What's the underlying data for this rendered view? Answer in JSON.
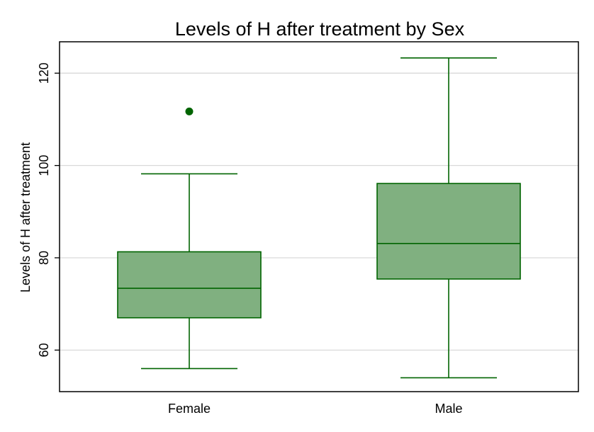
{
  "chart_data": {
    "type": "box",
    "title": "Levels of H after treatment by Sex",
    "xlabel": "",
    "ylabel": "Levels of H after treatment",
    "ylim": [
      51,
      126.8
    ],
    "yticks": [
      60,
      80,
      100,
      120
    ],
    "grid": "horizontal",
    "categories": [
      "Female",
      "Male"
    ],
    "boxes": [
      {
        "category": "Female",
        "whisker_low": 56,
        "q1": 67,
        "median": 73.4,
        "q3": 81.3,
        "whisker_high": 98.2,
        "outliers": [
          111.7
        ]
      },
      {
        "category": "Male",
        "whisker_low": 54,
        "q1": 75.4,
        "median": 83.1,
        "q3": 96.1,
        "whisker_high": 123.3,
        "outliers": []
      }
    ],
    "colors": {
      "box_fill": "#80b080",
      "box_stroke": "#006400",
      "grid": "#d9d9d9",
      "frame": "#000000"
    }
  }
}
